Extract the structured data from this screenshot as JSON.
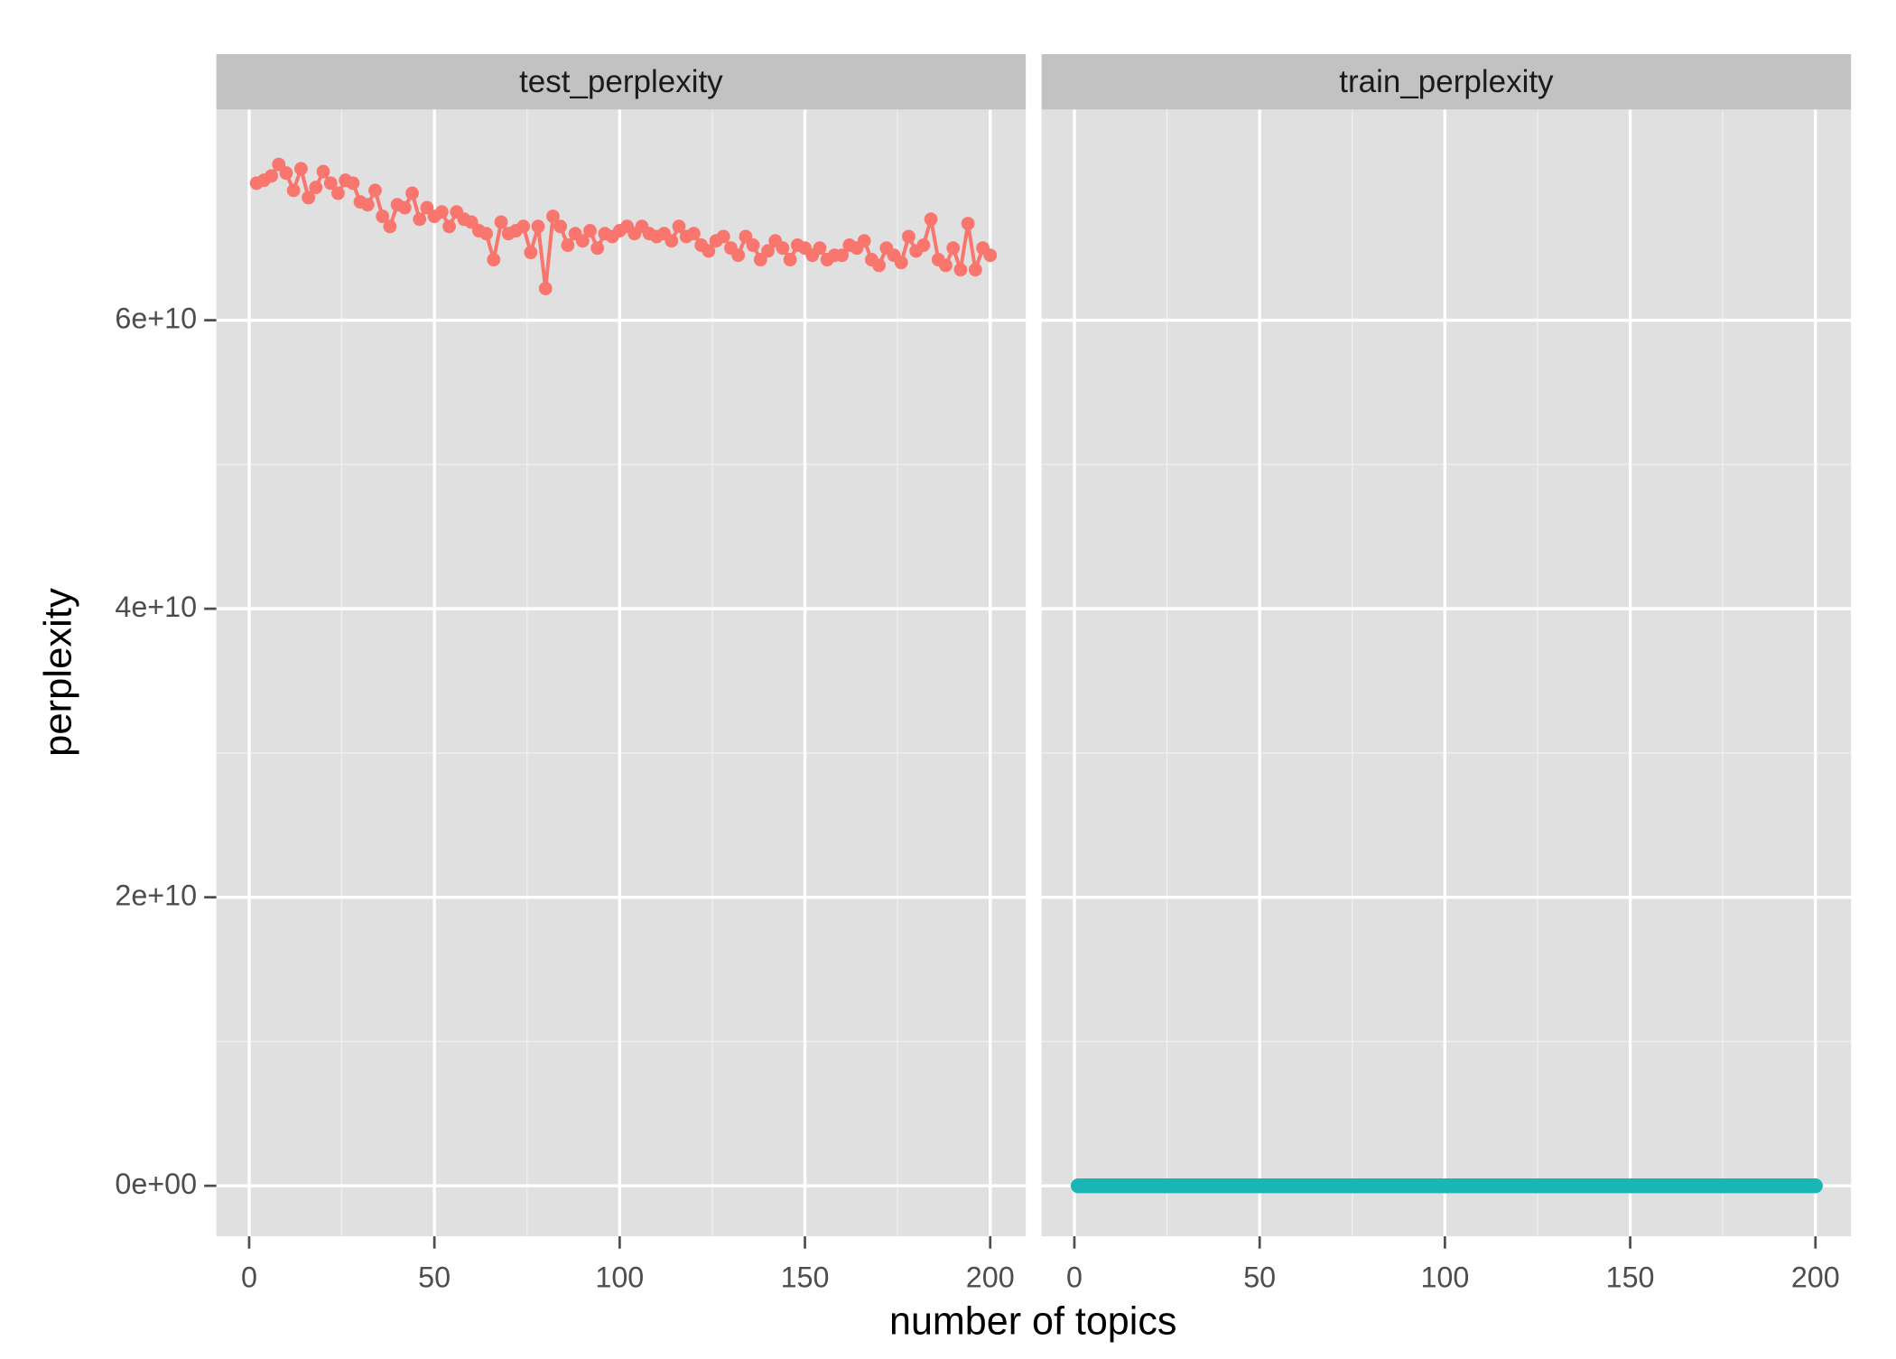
{
  "chart_data": {
    "type": "line",
    "xlabel": "number of topics",
    "ylabel": "perplexity",
    "xlim": [
      -8.85,
      209.6
    ],
    "ylim": [
      -3500000000.0,
      74600000000.0
    ],
    "xticks": [
      0,
      50,
      100,
      150,
      200
    ],
    "yticks": [
      {
        "value": 0,
        "label": "0e+00"
      },
      {
        "value": 20000000000.0,
        "label": "2e+10"
      },
      {
        "value": 40000000000.0,
        "label": "4e+10"
      },
      {
        "value": 60000000000.0,
        "label": "6e+10"
      }
    ],
    "grid": true,
    "panels": [
      {
        "title": "test_perplexity",
        "x": [
          2,
          4,
          6,
          8,
          10,
          12,
          14,
          16,
          18,
          20,
          22,
          24,
          26,
          28,
          30,
          32,
          34,
          36,
          38,
          40,
          42,
          44,
          46,
          48,
          50,
          52,
          54,
          56,
          58,
          60,
          62,
          64,
          66,
          68,
          70,
          72,
          74,
          76,
          78,
          80,
          82,
          84,
          86,
          88,
          90,
          92,
          94,
          96,
          98,
          100,
          102,
          104,
          106,
          108,
          110,
          112,
          114,
          116,
          118,
          120,
          122,
          124,
          126,
          128,
          130,
          132,
          134,
          136,
          138,
          140,
          142,
          144,
          146,
          148,
          150,
          152,
          154,
          156,
          158,
          160,
          162,
          164,
          166,
          168,
          170,
          172,
          174,
          176,
          178,
          180,
          182,
          184,
          186,
          188,
          190,
          192,
          194,
          196,
          198,
          200
        ],
        "series": [
          {
            "color": "#F8766D",
            "values": [
              69500000000.0,
              69700000000.0,
              70000000000.0,
              70800000000.0,
              70200000000.0,
              69000000000.0,
              70500000000.0,
              68500000000.0,
              69200000000.0,
              70300000000.0,
              69500000000.0,
              68800000000.0,
              69700000000.0,
              69500000000.0,
              68200000000.0,
              68000000000.0,
              69000000000.0,
              67200000000.0,
              66500000000.0,
              68000000000.0,
              67800000000.0,
              68800000000.0,
              67000000000.0,
              67800000000.0,
              67200000000.0,
              67500000000.0,
              66500000000.0,
              67500000000.0,
              67000000000.0,
              66800000000.0,
              66200000000.0,
              66000000000.0,
              64200000000.0,
              66800000000.0,
              66000000000.0,
              66200000000.0,
              66500000000.0,
              64700000000.0,
              66500000000.0,
              62200000000.0,
              67200000000.0,
              66500000000.0,
              65200000000.0,
              66000000000.0,
              65500000000.0,
              66200000000.0,
              65000000000.0,
              66000000000.0,
              65800000000.0,
              66200000000.0,
              66500000000.0,
              66000000000.0,
              66500000000.0,
              66000000000.0,
              65800000000.0,
              66000000000.0,
              65500000000.0,
              66500000000.0,
              65800000000.0,
              66000000000.0,
              65200000000.0,
              64800000000.0,
              65500000000.0,
              65800000000.0,
              65000000000.0,
              64500000000.0,
              65800000000.0,
              65200000000.0,
              64200000000.0,
              64800000000.0,
              65500000000.0,
              65000000000.0,
              64200000000.0,
              65200000000.0,
              65000000000.0,
              64500000000.0,
              65000000000.0,
              64200000000.0,
              64500000000.0,
              64500000000.0,
              65200000000.0,
              65000000000.0,
              65500000000.0,
              64200000000.0,
              63800000000.0,
              65000000000.0,
              64500000000.0,
              64000000000.0,
              65800000000.0,
              64800000000.0,
              65200000000.0,
              67000000000.0,
              64200000000.0,
              63800000000.0,
              65000000000.0,
              63500000000.0,
              66700000000.0,
              63500000000.0,
              65000000000.0,
              64500000000.0
            ]
          }
        ]
      },
      {
        "title": "train_perplexity",
        "x": [
          1,
          200
        ],
        "series": [
          {
            "color": "#1AB5B5",
            "values": [
              0,
              0
            ]
          }
        ]
      }
    ]
  }
}
